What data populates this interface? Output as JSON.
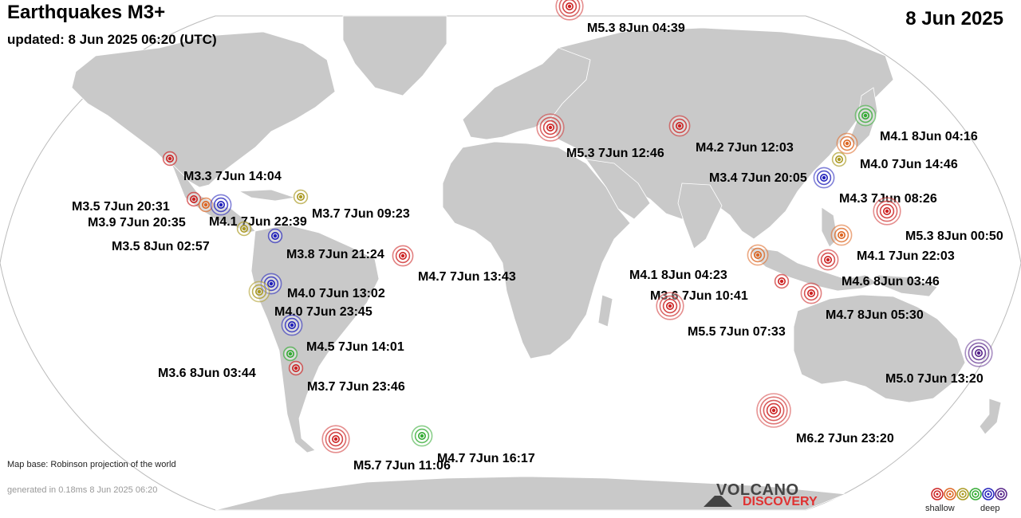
{
  "header": {
    "title": "Earthquakes M3+",
    "updated": "updated:  8 Jun 2025 06:20 (UTC)",
    "date": "8 Jun 2025"
  },
  "footer": {
    "map_base": "Map base: Robinson projection of the world",
    "generated": "generated in 0.18ms  8 Jun 2025 06:20"
  },
  "logo": {
    "top": "VOLCANO",
    "bottom": "DISCOVERY"
  },
  "legend": {
    "shallow": "shallow",
    "deep": "deep",
    "colors": [
      "#cc2222",
      "#dd6622",
      "#aa9922",
      "#33aa33",
      "#2222bb",
      "#552288"
    ]
  },
  "depth_colors": {
    "shallow": "#cc2222",
    "intermediate": "#dd6622",
    "medium": "#aa9922",
    "green": "#33aa33",
    "deep": "#2222bb",
    "verydeep": "#552288"
  },
  "quakes": [
    {
      "label": "M5.3  8Jun 04:39",
      "mag": 5.3,
      "depth": "shallow"
    },
    {
      "label": "M4.1  8Jun 04:16",
      "mag": 4.1,
      "depth": "green"
    },
    {
      "label": "M4.0  7Jun 14:46",
      "mag": 4.0,
      "depth": "intermediate"
    },
    {
      "label": "M5.3  7Jun 12:46",
      "mag": 5.3,
      "depth": "shallow"
    },
    {
      "label": "M4.2  7Jun 12:03",
      "mag": 4.2,
      "depth": "shallow"
    },
    {
      "label": "M3.4  7Jun 20:05",
      "mag": 3.4,
      "depth": "medium"
    },
    {
      "label": "M4.3  7Jun 08:26",
      "mag": 4.3,
      "depth": "deep"
    },
    {
      "label": "M3.3  7Jun 14:04",
      "mag": 3.3,
      "depth": "shallow"
    },
    {
      "label": "M3.5  7Jun 20:31",
      "mag": 3.5,
      "depth": "shallow"
    },
    {
      "label": "M3.9  7Jun 20:35",
      "mag": 3.9,
      "depth": "intermediate"
    },
    {
      "label": "M4.1  7Jun 22:39",
      "mag": 4.1,
      "depth": "deep"
    },
    {
      "label": "M3.7  7Jun 09:23",
      "mag": 3.7,
      "depth": "medium"
    },
    {
      "label": "M3.5  8Jun 02:57",
      "mag": 3.5,
      "depth": "medium"
    },
    {
      "label": "M3.8  7Jun 21:24",
      "mag": 3.8,
      "depth": "deep"
    },
    {
      "label": "M4.7  7Jun 13:43",
      "mag": 4.7,
      "depth": "shallow"
    },
    {
      "label": "M5.3  8Jun 00:50",
      "mag": 5.3,
      "depth": "shallow"
    },
    {
      "label": "M4.1  7Jun 22:03",
      "mag": 4.1,
      "depth": "intermediate"
    },
    {
      "label": "M4.1  8Jun 04:23",
      "mag": 4.1,
      "depth": "intermediate"
    },
    {
      "label": "M4.6  8Jun 03:46",
      "mag": 4.6,
      "depth": "shallow"
    },
    {
      "label": "M3.6  7Jun 10:41",
      "mag": 3.6,
      "depth": "shallow"
    },
    {
      "label": "M4.7  8Jun 05:30",
      "mag": 4.7,
      "depth": "shallow"
    },
    {
      "label": "M5.5  7Jun 07:33",
      "mag": 5.5,
      "depth": "shallow"
    },
    {
      "label": "M4.0  7Jun 13:02",
      "mag": 4.0,
      "depth": "deep"
    },
    {
      "label": "M4.0  7Jun 23:45",
      "mag": 4.0,
      "depth": "medium"
    },
    {
      "label": "M4.5  7Jun 14:01",
      "mag": 4.5,
      "depth": "deep"
    },
    {
      "label": "M3.6  8Jun 03:44",
      "mag": 3.6,
      "depth": "green"
    },
    {
      "label": "M3.7  7Jun 23:46",
      "mag": 3.7,
      "depth": "shallow"
    },
    {
      "label": "M5.0  7Jun 13:20",
      "mag": 5.0,
      "depth": "verydeep"
    },
    {
      "label": "M6.2  7Jun 23:20",
      "mag": 6.2,
      "depth": "shallow"
    },
    {
      "label": "M5.7  7Jun 11:06",
      "mag": 5.7,
      "depth": "shallow"
    },
    {
      "label": "M4.7  7Jun 16:17",
      "mag": 4.7,
      "depth": "green"
    }
  ]
}
